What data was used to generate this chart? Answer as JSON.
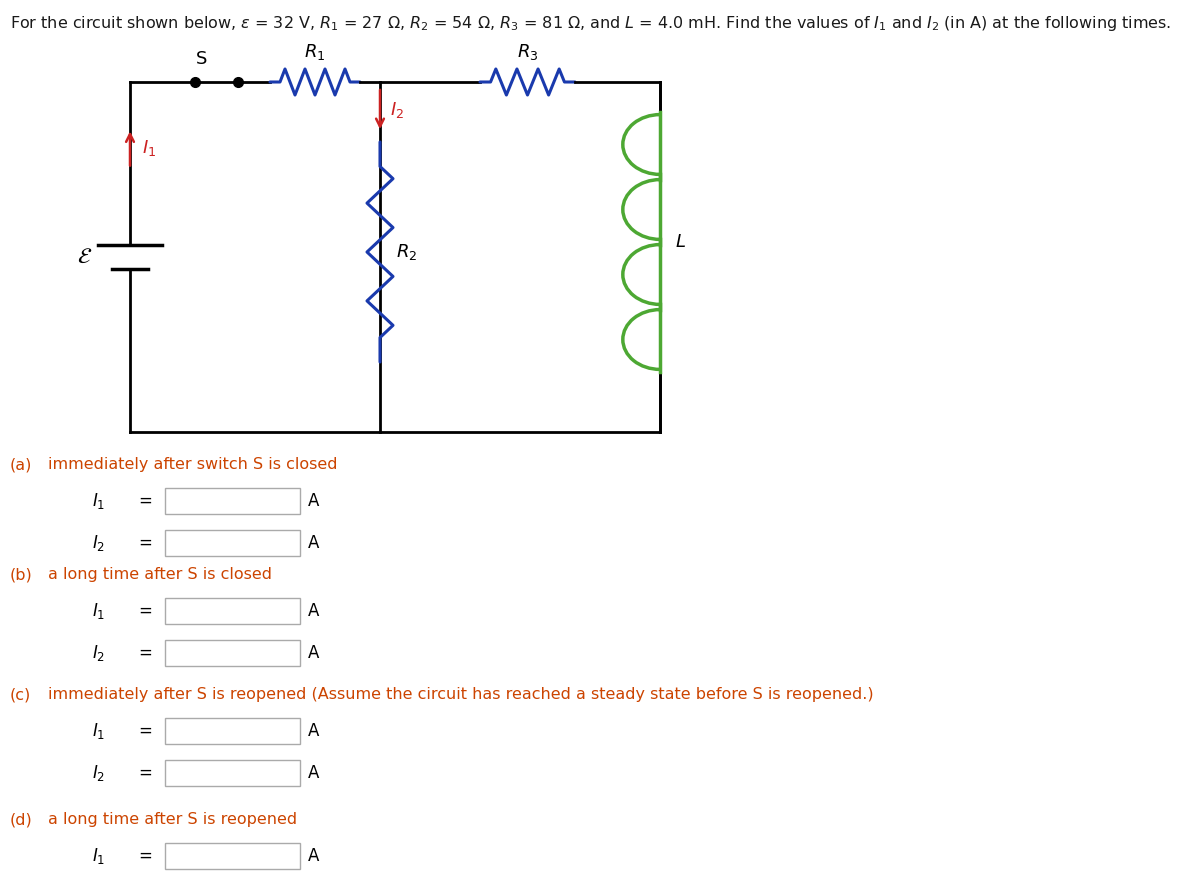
{
  "bg_color": "#ffffff",
  "circuit_line_color": "#000000",
  "R1_color": "#1a3aad",
  "R2_color": "#1a3aad",
  "R3_color": "#1a3aad",
  "L_color": "#4da833",
  "arrow_color": "#cc2222",
  "section_label_color": "#cc4400",
  "parts_letters": [
    "(a)",
    "(b)",
    "(c)",
    "(d)"
  ],
  "parts_texts": [
    "  immediately after switch S is closed",
    "  a long time after S is closed",
    "  immediately after S is reopened (Assume the circuit has reached a steady state before S is reopened.)",
    "  a long time after S is reopened"
  ]
}
